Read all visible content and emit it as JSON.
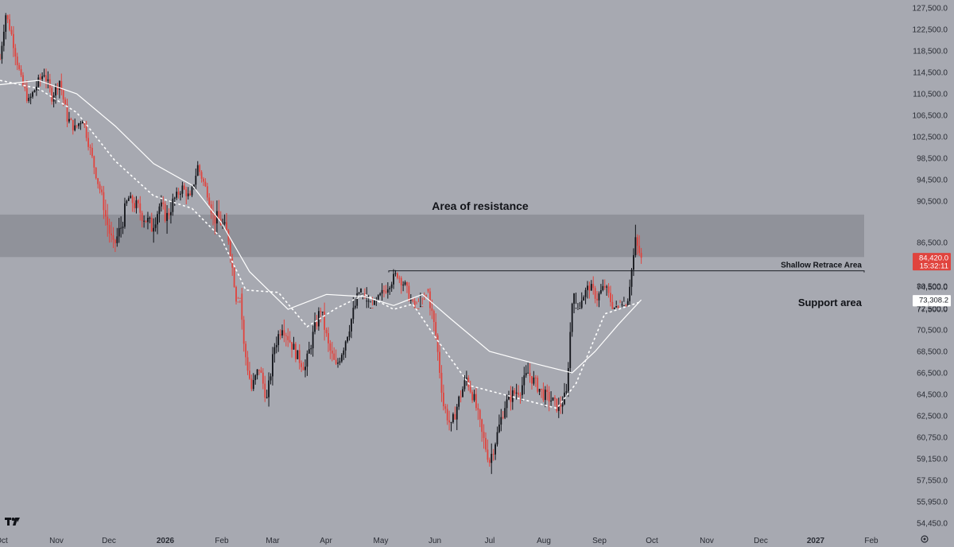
{
  "chart_data": {
    "type": "candlestick",
    "annotations": {
      "resistance": {
        "label": "Area of resistance",
        "low": 84500,
        "high": 89200
      },
      "shallow_retrace": {
        "label": "Shallow Retrace Area",
        "level": 82400
      },
      "support": {
        "label": "Support area",
        "low": 76500,
        "high": 78400
      }
    },
    "y_ticks": [
      "127,500.0",
      "122,500.0",
      "118,500.0",
      "114,500.0",
      "110,500.0",
      "106,500.0",
      "102,500.0",
      "98,500.0",
      "94,500.0",
      "90,500.0",
      "86,500.0",
      "80,500.0",
      "77,500.0",
      "74,500.0",
      "72,500.0",
      "70,500.0",
      "68,500.0",
      "66,500.0",
      "64,500.0",
      "62,500.0",
      "60,750.0",
      "59,150.0",
      "57,550.0",
      "55,950.0",
      "54,450.0"
    ],
    "x_ticks": [
      {
        "label": "Oct",
        "year": false
      },
      {
        "label": "Nov",
        "year": false
      },
      {
        "label": "Dec",
        "year": false
      },
      {
        "label": "2026",
        "year": true
      },
      {
        "label": "Feb",
        "year": false
      },
      {
        "label": "Mar",
        "year": false
      },
      {
        "label": "Apr",
        "year": false
      },
      {
        "label": "May",
        "year": false
      },
      {
        "label": "Jun",
        "year": false
      },
      {
        "label": "Jul",
        "year": false
      },
      {
        "label": "Aug",
        "year": false
      },
      {
        "label": "Sep",
        "year": false
      },
      {
        "label": "Oct",
        "year": false
      },
      {
        "label": "Nov",
        "year": false
      },
      {
        "label": "Dec",
        "year": false
      },
      {
        "label": "2027",
        "year": true
      },
      {
        "label": "Feb",
        "year": false
      }
    ],
    "price_badges": [
      {
        "value": 84420,
        "label": "84,420.0",
        "sub": "15:32:11",
        "color": "#e0443e",
        "text_color": "#ffffff"
      },
      {
        "value": 76469.9,
        "label": "76,469.9",
        "color": "#ffffff",
        "text_color": "#1a1d24"
      },
      {
        "value": 73308.2,
        "label": "73,308.2",
        "color": "#ffffff",
        "text_color": "#1a1d24"
      }
    ],
    "price_path": [
      [
        0,
        117000
      ],
      [
        3,
        126000
      ],
      [
        7,
        120000
      ],
      [
        11,
        113000
      ],
      [
        15,
        109000
      ],
      [
        19,
        112000
      ],
      [
        23,
        114500
      ],
      [
        27,
        110000
      ],
      [
        31,
        113000
      ],
      [
        35,
        106000
      ],
      [
        39,
        104000
      ],
      [
        43,
        106000
      ],
      [
        47,
        100000
      ],
      [
        51,
        94000
      ],
      [
        55,
        89000
      ],
      [
        59,
        86000
      ],
      [
        63,
        88000
      ],
      [
        67,
        91000
      ],
      [
        71,
        90000
      ],
      [
        75,
        89000
      ],
      [
        79,
        88000
      ],
      [
        83,
        90000
      ],
      [
        87,
        89000
      ],
      [
        91,
        91000
      ],
      [
        95,
        93000
      ],
      [
        99,
        91000
      ],
      [
        103,
        97000
      ],
      [
        107,
        93000
      ],
      [
        111,
        89000
      ],
      [
        115,
        88500
      ],
      [
        119,
        87000
      ],
      [
        123,
        79000
      ],
      [
        127,
        69000
      ],
      [
        131,
        65000
      ],
      [
        135,
        67000
      ],
      [
        139,
        64000
      ],
      [
        143,
        69000
      ],
      [
        147,
        71000
      ],
      [
        151,
        69500
      ],
      [
        155,
        68000
      ],
      [
        159,
        67000
      ],
      [
        163,
        70000
      ],
      [
        167,
        72500
      ],
      [
        171,
        69000
      ],
      [
        175,
        67000
      ],
      [
        179,
        69000
      ],
      [
        183,
        71500
      ],
      [
        187,
        74000
      ],
      [
        191,
        76000
      ],
      [
        195,
        78000
      ],
      [
        199,
        79500
      ],
      [
        203,
        81000
      ],
      [
        207,
        82200
      ],
      [
        211,
        80500
      ],
      [
        215,
        78000
      ],
      [
        219,
        76500
      ],
      [
        223,
        74000
      ],
      [
        227,
        70000
      ],
      [
        231,
        63500
      ],
      [
        235,
        61500
      ],
      [
        239,
        64000
      ],
      [
        243,
        66000
      ],
      [
        247,
        64000
      ],
      [
        251,
        61000
      ],
      [
        255,
        59000
      ],
      [
        259,
        61000
      ],
      [
        263,
        63500
      ],
      [
        267,
        64500
      ],
      [
        271,
        65000
      ],
      [
        275,
        66500
      ],
      [
        279,
        65500
      ],
      [
        283,
        64500
      ],
      [
        287,
        64000
      ],
      [
        291,
        63200
      ],
      [
        295,
        64500
      ],
      [
        299,
        76000
      ],
      [
        303,
        79000
      ],
      [
        307,
        80500
      ],
      [
        311,
        79000
      ],
      [
        315,
        80500
      ],
      [
        319,
        78000
      ],
      [
        323,
        77000
      ],
      [
        327,
        79000
      ],
      [
        331,
        86500
      ],
      [
        334,
        84420
      ]
    ],
    "ma_fast_dashed": [
      [
        0,
        113000
      ],
      [
        20,
        111500
      ],
      [
        40,
        107000
      ],
      [
        60,
        98000
      ],
      [
        80,
        91500
      ],
      [
        100,
        89800
      ],
      [
        115,
        87000
      ],
      [
        128,
        80000
      ],
      [
        145,
        74000
      ],
      [
        160,
        70800
      ],
      [
        175,
        72500
      ],
      [
        190,
        75500
      ],
      [
        205,
        77500
      ],
      [
        215,
        76800
      ],
      [
        228,
        69500
      ],
      [
        245,
        65300
      ],
      [
        262,
        64500
      ],
      [
        290,
        63200
      ],
      [
        300,
        65500
      ],
      [
        315,
        72000
      ],
      [
        334,
        76469.9
      ]
    ],
    "ma_slow_solid": [
      [
        0,
        112200
      ],
      [
        20,
        113000
      ],
      [
        40,
        110500
      ],
      [
        60,
        104500
      ],
      [
        80,
        97500
      ],
      [
        100,
        93500
      ],
      [
        115,
        88500
      ],
      [
        130,
        82500
      ],
      [
        150,
        77500
      ],
      [
        170,
        75500
      ],
      [
        190,
        75800
      ],
      [
        205,
        77000
      ],
      [
        220,
        75500
      ],
      [
        235,
        71500
      ],
      [
        255,
        68500
      ],
      [
        280,
        67300
      ],
      [
        298,
        66500
      ],
      [
        310,
        68500
      ],
      [
        322,
        71000
      ],
      [
        334,
        73308.2
      ]
    ]
  }
}
